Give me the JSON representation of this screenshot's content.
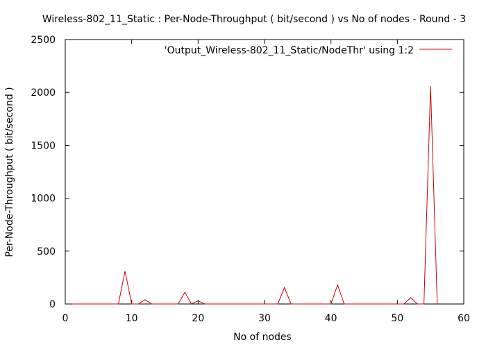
{
  "chart_data": {
    "type": "line",
    "title": "Wireless-802_11_Static : Per-Node-Throughput ( bit/second ) vs No of nodes - Round - 3",
    "xlabel": "No of nodes",
    "ylabel": "Per-Node-Throughput ( bit/second )",
    "xlim": [
      0,
      60
    ],
    "ylim": [
      0,
      2500
    ],
    "xticks": [
      0,
      10,
      20,
      30,
      40,
      50,
      60
    ],
    "yticks": [
      0,
      500,
      1000,
      1500,
      2000,
      2500
    ],
    "grid": false,
    "legend_position": "top-right",
    "series": [
      {
        "name": "'Output_Wireless-802_11_Static/NodeThr' using 1:2",
        "color": "#cc0000",
        "x": [
          1,
          2,
          3,
          4,
          5,
          6,
          7,
          8,
          9,
          10,
          11,
          12,
          13,
          14,
          15,
          16,
          17,
          18,
          19,
          20,
          21,
          22,
          23,
          24,
          25,
          26,
          27,
          28,
          29,
          30,
          31,
          32,
          33,
          34,
          35,
          36,
          37,
          38,
          39,
          40,
          41,
          42,
          43,
          44,
          45,
          46,
          47,
          48,
          49,
          50,
          51,
          52,
          53,
          54,
          55,
          56
        ],
        "y": [
          0,
          0,
          0,
          0,
          0,
          0,
          0,
          0,
          310,
          0,
          0,
          40,
          0,
          0,
          0,
          0,
          0,
          110,
          0,
          30,
          0,
          0,
          0,
          0,
          0,
          0,
          0,
          0,
          0,
          0,
          0,
          0,
          155,
          0,
          0,
          0,
          0,
          0,
          0,
          0,
          180,
          0,
          0,
          0,
          0,
          0,
          0,
          0,
          0,
          0,
          0,
          60,
          0,
          0,
          2060,
          0
        ]
      }
    ]
  }
}
